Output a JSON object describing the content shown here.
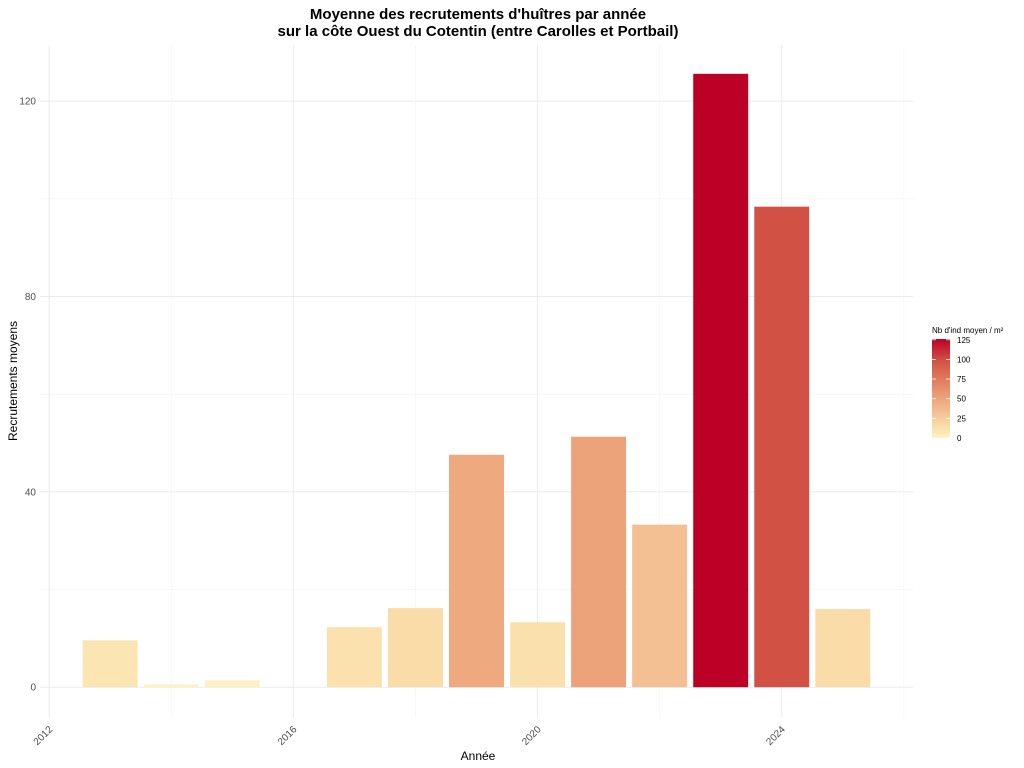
{
  "chart_data": {
    "type": "bar",
    "title": "Moyenne des recrutements d'huîtres par année",
    "subtitle": "sur la côte Ouest du Cotentin (entre Carolles et Portbail)",
    "xlabel": "Année",
    "ylabel": "Recrutements moyens",
    "x": [
      2013,
      2014,
      2015,
      2016,
      2017,
      2018,
      2019,
      2020,
      2021,
      2022,
      2023,
      2024,
      2025
    ],
    "values": [
      9.6,
      0.6,
      1.4,
      0,
      12.3,
      16.2,
      47.6,
      13.3,
      51.3,
      33.3,
      125.6,
      98.4,
      16.0
    ],
    "xlim": [
      2011.85,
      2026.15
    ],
    "ylim": [
      -6.3,
      131.5
    ],
    "x_ticks": [
      "2012",
      "2016",
      "2020",
      "2024"
    ],
    "y_ticks": [
      "0",
      "40",
      "80",
      "120"
    ],
    "grid": true,
    "legend": {
      "title": "Nb d'ind moyen / m²",
      "position": "right",
      "ticks": [
        "0",
        "25",
        "50",
        "75",
        "100",
        "125"
      ],
      "range": [
        0,
        126
      ],
      "color_stops": [
        [
          0,
          "#FFF2C2"
        ],
        [
          16,
          "#F9DCA8"
        ],
        [
          33,
          "#F3C094"
        ],
        [
          50,
          "#EDA57B"
        ],
        [
          98,
          "#D15344"
        ],
        [
          126,
          "#BD0026"
        ]
      ]
    }
  }
}
